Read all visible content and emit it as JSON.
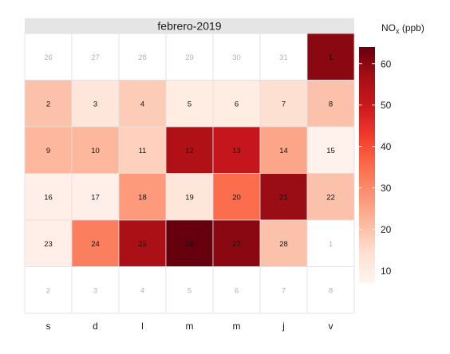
{
  "chart_data": {
    "type": "heatmap",
    "title": "febrero-2019",
    "legend": {
      "title": "NO",
      "title_sub": "x",
      "title_unit": "(ppb)",
      "placement": "right",
      "ticks": [
        10,
        20,
        30,
        40,
        50,
        60
      ],
      "range": [
        7,
        64
      ],
      "palette": [
        "#fff5f0",
        "#fee0d2",
        "#fcbba1",
        "#fc9272",
        "#fb6a4a",
        "#ef3b2c",
        "#cb181d",
        "#a50f15",
        "#67000d"
      ]
    },
    "weekday_labels": [
      "s",
      "d",
      "l",
      "m",
      "m",
      "j",
      "v"
    ],
    "weeks": [
      [
        {
          "label": "26",
          "value": null
        },
        {
          "label": "27",
          "value": null
        },
        {
          "label": "28",
          "value": null
        },
        {
          "label": "29",
          "value": null
        },
        {
          "label": "30",
          "value": null
        },
        {
          "label": "31",
          "value": null
        },
        {
          "label": "1",
          "value": 60
        }
      ],
      [
        {
          "label": "2",
          "value": 20
        },
        {
          "label": "3",
          "value": 12
        },
        {
          "label": "4",
          "value": 18
        },
        {
          "label": "5",
          "value": 10
        },
        {
          "label": "6",
          "value": 10
        },
        {
          "label": "7",
          "value": 14
        },
        {
          "label": "8",
          "value": 20
        }
      ],
      [
        {
          "label": "9",
          "value": 22
        },
        {
          "label": "10",
          "value": 22
        },
        {
          "label": "11",
          "value": 17
        },
        {
          "label": "12",
          "value": 55
        },
        {
          "label": "13",
          "value": 51
        },
        {
          "label": "14",
          "value": 25
        },
        {
          "label": "15",
          "value": 8
        }
      ],
      [
        {
          "label": "16",
          "value": 9
        },
        {
          "label": "17",
          "value": 9
        },
        {
          "label": "18",
          "value": 27
        },
        {
          "label": "19",
          "value": 12
        },
        {
          "label": "20",
          "value": 35
        },
        {
          "label": "21",
          "value": 58
        },
        {
          "label": "22",
          "value": 20
        }
      ],
      [
        {
          "label": "23",
          "value": 9
        },
        {
          "label": "24",
          "value": 32
        },
        {
          "label": "25",
          "value": 56
        },
        {
          "label": "26",
          "value": 64
        },
        {
          "label": "27",
          "value": 60
        },
        {
          "label": "28",
          "value": 20
        },
        {
          "label": "1",
          "value": null
        }
      ],
      [
        {
          "label": "2",
          "value": null
        },
        {
          "label": "3",
          "value": null
        },
        {
          "label": "4",
          "value": null
        },
        {
          "label": "5",
          "value": null
        },
        {
          "label": "6",
          "value": null
        },
        {
          "label": "7",
          "value": null
        },
        {
          "label": "8",
          "value": null
        }
      ]
    ],
    "grid": true,
    "colors": {
      "strip_background": "#e5e5e5",
      "empty_cell": "#ffffff",
      "grid_line": "#e0e0e0",
      "in_month_text": "#111111",
      "out_month_text": "#b3b3b3"
    }
  }
}
